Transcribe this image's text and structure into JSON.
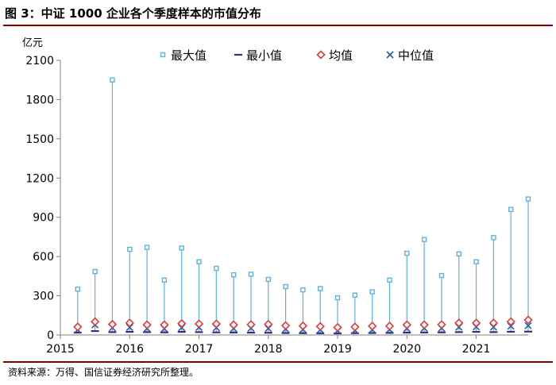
{
  "header": {
    "title": "图 3：中证 1000 企业各个季度样本的市值分布"
  },
  "footer": {
    "source": "资料来源：万得、国信证券经济研究所整理。"
  },
  "colors": {
    "title_rule": "#8b0000",
    "max_series": "#5ab4e0",
    "min_series": "#3d2b7a",
    "mean_series": "#e53935",
    "median_series": "#1f5fa8",
    "axis": "#808080"
  },
  "chart_data": {
    "type": "line",
    "yunit": "亿元",
    "ylim": [
      0,
      2100
    ],
    "yticks": [
      0,
      300,
      600,
      900,
      1200,
      1500,
      1800,
      2100
    ],
    "xlim": [
      2015.0,
      2021.75
    ],
    "xticks": [
      2015,
      2016,
      2017,
      2018,
      2019,
      2020,
      2021
    ],
    "grid": false,
    "legend_position": "top",
    "x": [
      2015.25,
      2015.5,
      2015.75,
      2016.0,
      2016.25,
      2016.5,
      2016.75,
      2017.0,
      2017.25,
      2017.5,
      2017.75,
      2018.0,
      2018.25,
      2018.5,
      2018.75,
      2019.0,
      2019.25,
      2019.5,
      2019.75,
      2020.0,
      2020.25,
      2020.5,
      2020.75,
      2021.0,
      2021.25,
      2021.5,
      2021.75
    ],
    "series": [
      {
        "name": "最大值",
        "marker": "square",
        "values": [
          350,
          485,
          1950,
          655,
          670,
          420,
          665,
          560,
          510,
          460,
          465,
          425,
          370,
          345,
          355,
          285,
          305,
          330,
          420,
          625,
          730,
          455,
          620,
          560,
          745,
          960,
          1040
        ]
      },
      {
        "name": "最小值",
        "marker": "dash",
        "values": [
          18,
          30,
          22,
          24,
          22,
          20,
          24,
          22,
          20,
          19,
          18,
          17,
          15,
          14,
          13,
          12,
          14,
          15,
          16,
          18,
          19,
          20,
          22,
          24,
          22,
          25,
          26
        ]
      },
      {
        "name": "均值",
        "marker": "diamond",
        "values": [
          62,
          102,
          82,
          92,
          78,
          78,
          88,
          85,
          85,
          78,
          80,
          82,
          72,
          70,
          65,
          58,
          62,
          68,
          68,
          78,
          78,
          80,
          92,
          92,
          92,
          102,
          115
        ]
      },
      {
        "name": "中位值",
        "marker": "x",
        "values": [
          40,
          78,
          55,
          58,
          50,
          48,
          56,
          58,
          56,
          50,
          52,
          50,
          45,
          42,
          40,
          34,
          36,
          40,
          42,
          50,
          52,
          52,
          60,
          62,
          60,
          68,
          72
        ]
      }
    ]
  }
}
